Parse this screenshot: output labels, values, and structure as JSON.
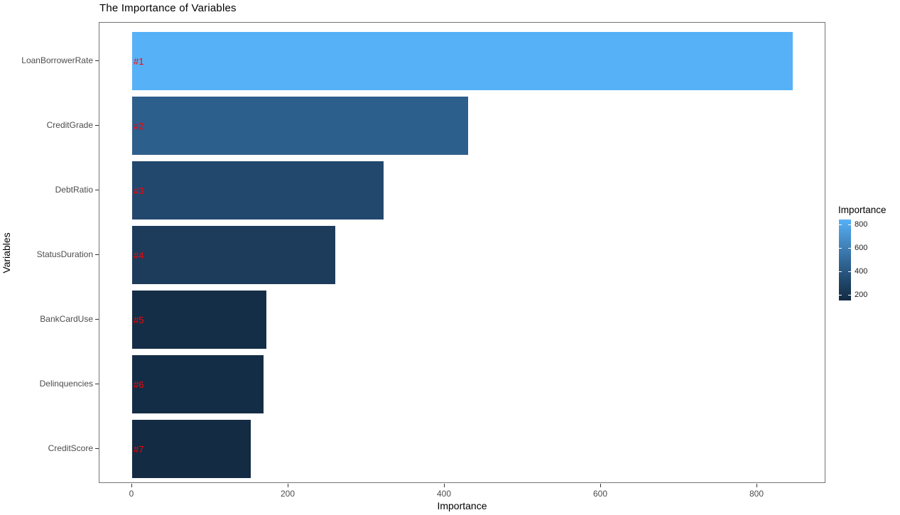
{
  "colors": {
    "background": "#ffffff",
    "panel_border": "#737373",
    "axis_text": "#4d4d4d",
    "axis_title_text": "#000000",
    "tick_mark": "#333333",
    "rank_label": "#ff0000",
    "gradient_high": "#56b1f7",
    "gradient_mid": "#2f6392",
    "gradient_low": "#132b43"
  },
  "chart_data": {
    "type": "bar",
    "orientation": "horizontal",
    "title": "The Importance of Variables",
    "xlabel": "Importance",
    "ylabel": "Variables",
    "grid": false,
    "xlim": [
      0,
      880
    ],
    "x_ticks": [
      0,
      200,
      400,
      600,
      800
    ],
    "categories": [
      "LoanBorrowerRate",
      "CreditGrade",
      "DebtRatio",
      "StatusDuration",
      "BankCardUse",
      "Delinquencies",
      "CreditScore"
    ],
    "values": [
      845,
      430,
      322,
      260,
      172,
      168,
      152
    ],
    "ranks": [
      "#1",
      "#2",
      "#3",
      "#4",
      "#5",
      "#6",
      "#7"
    ],
    "bar_colors": [
      "#56b1f7",
      "#2d5f8c",
      "#23486e",
      "#1d3c5b",
      "#152e47",
      "#142d46",
      "#132b43"
    ],
    "legend": {
      "title": "Importance",
      "position": "right",
      "ticks": [
        800,
        600,
        400,
        200
      ],
      "range": [
        152,
        845
      ],
      "gradient_stops": [
        "#56b1f7",
        "#4386bf",
        "#2f6392",
        "#1e4263",
        "#132b43"
      ]
    }
  }
}
